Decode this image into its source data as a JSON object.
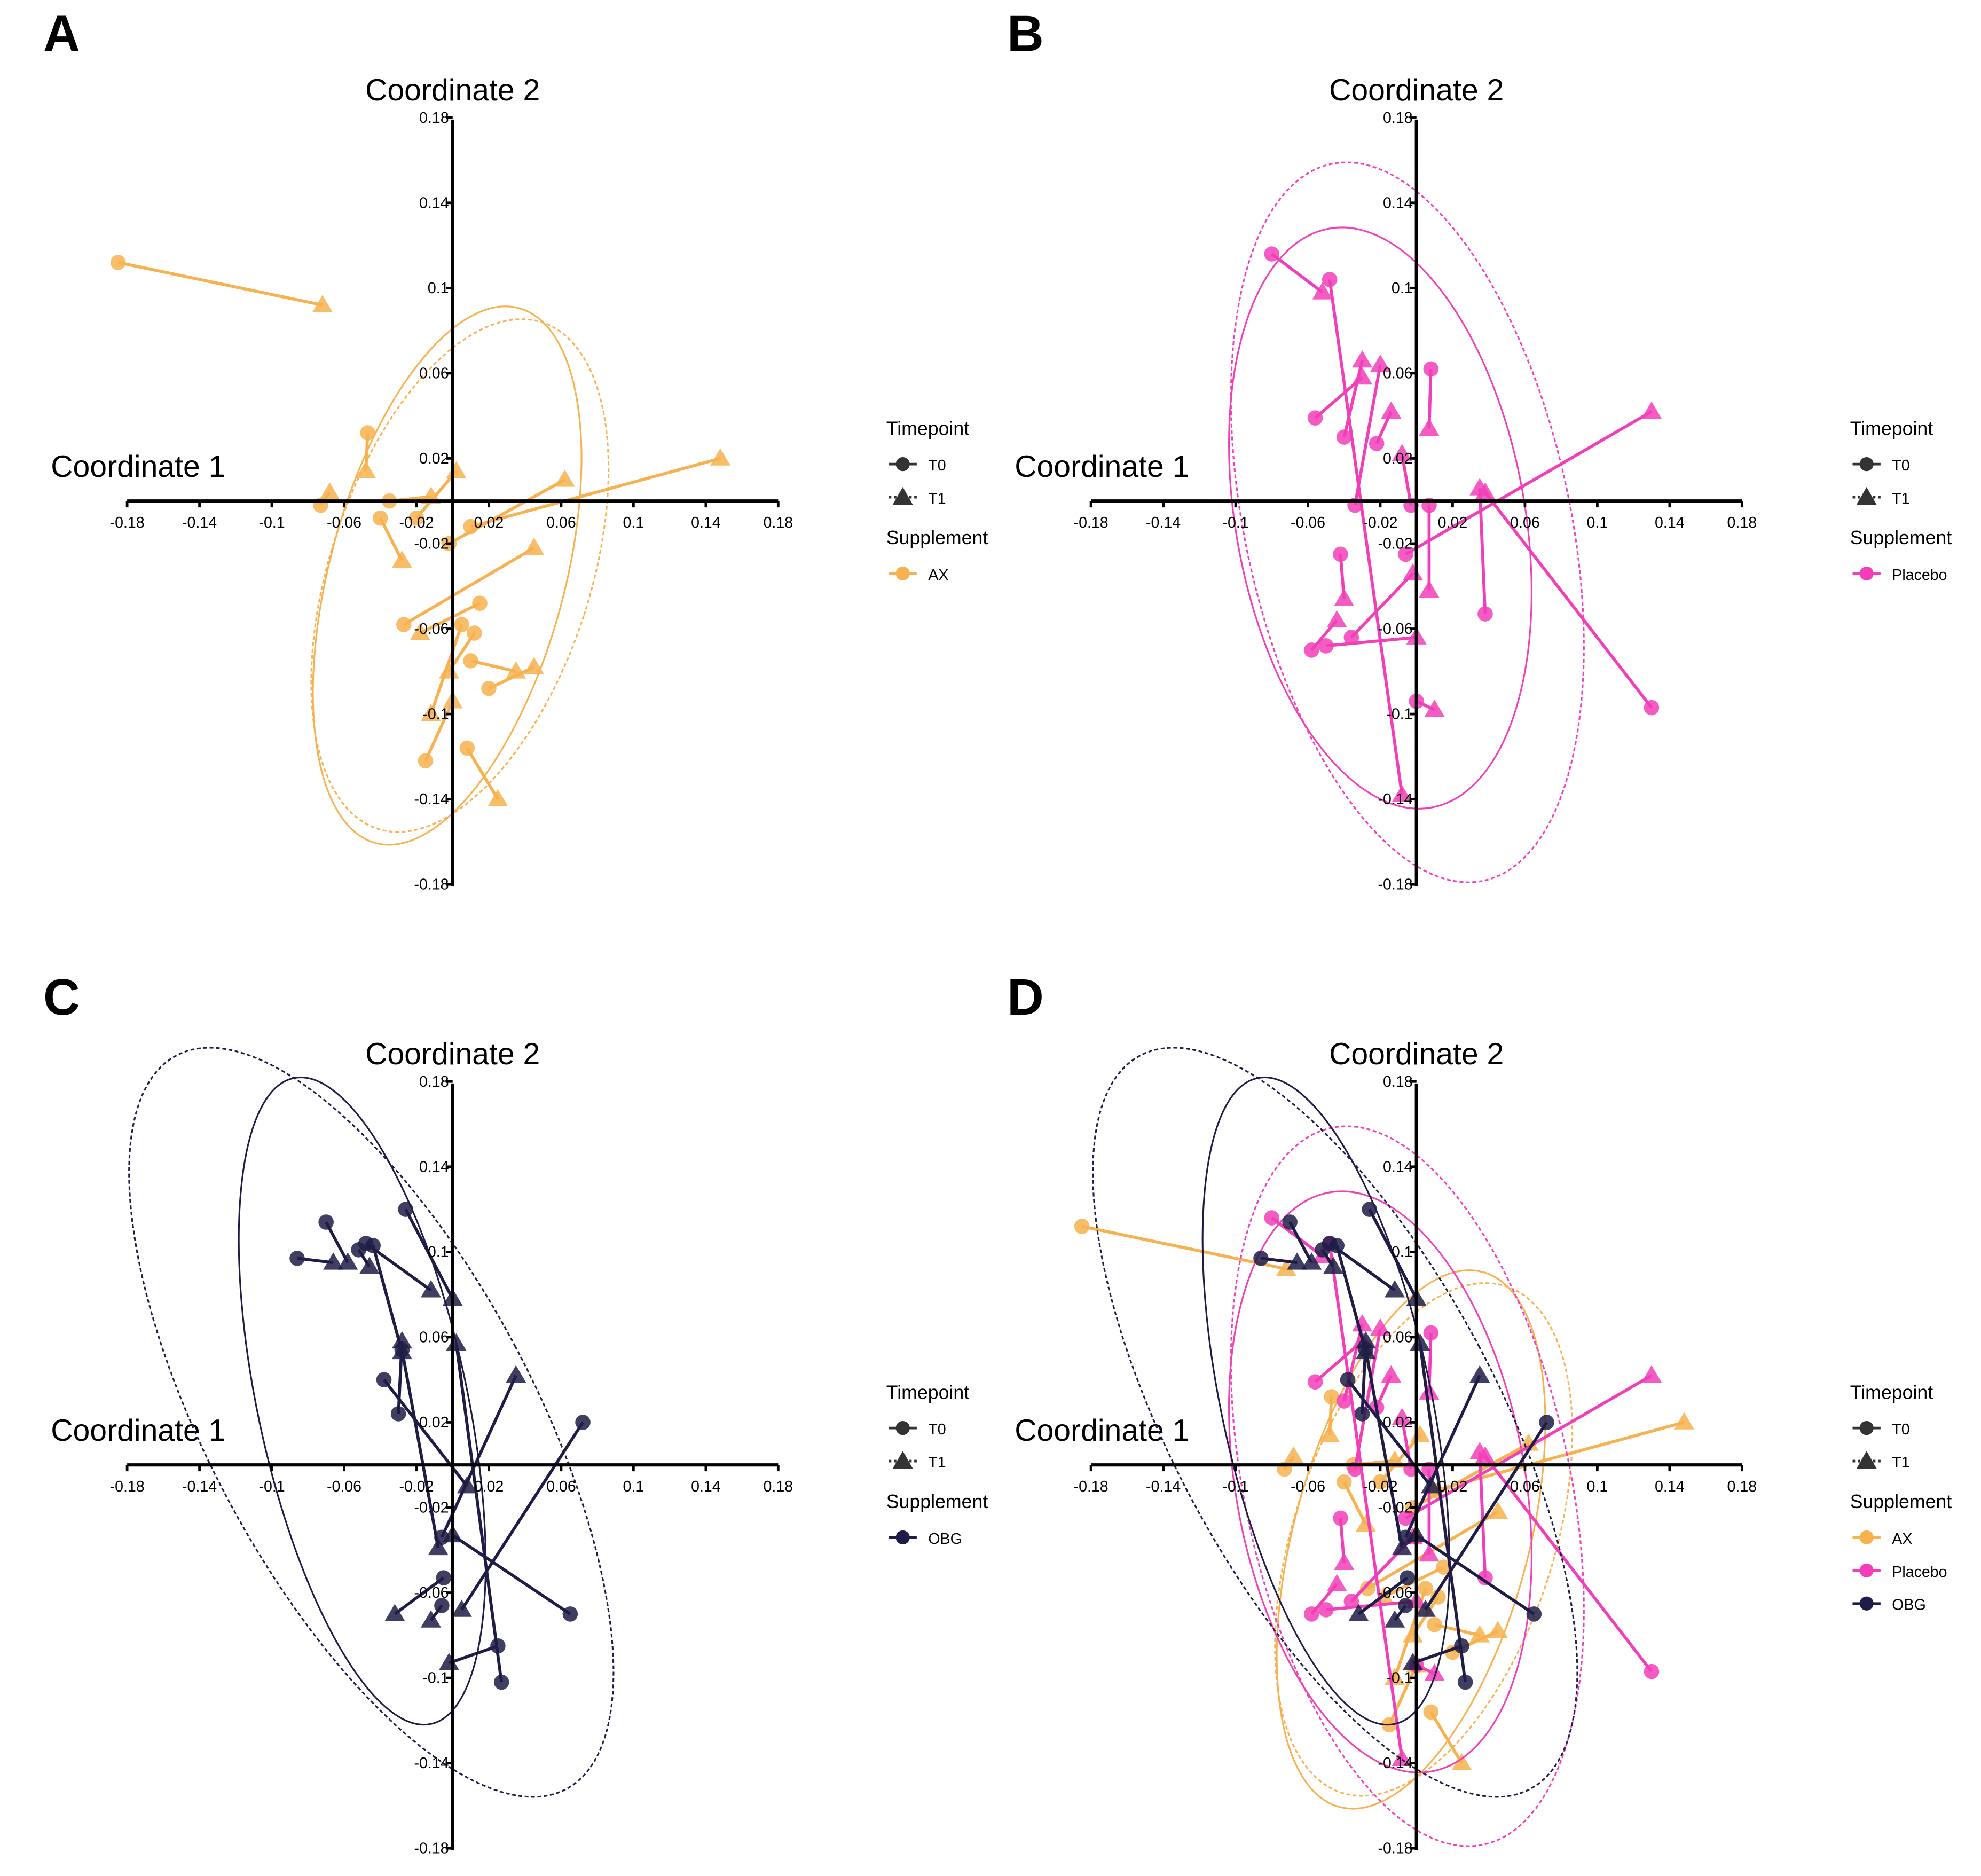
{
  "chart_data": [
    {
      "panel_label": "A",
      "type": "scatter",
      "ordination": "PCoA paired timepoints with 95% ellipses",
      "xlabel": "Coordinate 1",
      "ylabel": "Coordinate 2",
      "xlim": [
        -0.18,
        0.18
      ],
      "ylim": [
        -0.18,
        0.18
      ],
      "x_ticks": [
        "-0.18",
        "-0.14",
        "-0.1",
        "-0.06",
        "-0.02",
        "0.02",
        "0.06",
        "0.1",
        "0.14",
        "0.18"
      ],
      "y_ticks": [
        "0.18",
        "0.14",
        "0.1",
        "0.06",
        "0.02",
        "-0.02",
        "-0.06",
        "-0.1",
        "-0.14",
        "-0.18"
      ],
      "grid": false,
      "legend": {
        "placement": "right",
        "timepoint_title": "Timepoint",
        "timepoint_items": [
          "T0",
          "T1"
        ],
        "supplement_title": "Supplement",
        "supplement_items": [
          {
            "name": "AX",
            "color": "#F7B14F"
          }
        ]
      },
      "groups": [
        {
          "name": "AX",
          "color": "#F7B14F",
          "pairs": [
            {
              "t0": [
                -0.185,
                0.112
              ],
              "t1": [
                -0.072,
                0.092
              ]
            },
            {
              "t0": [
                -0.073,
                -0.002
              ],
              "t1": [
                -0.068,
                0.004
              ]
            },
            {
              "t0": [
                -0.047,
                0.032
              ],
              "t1": [
                -0.048,
                0.014
              ]
            },
            {
              "t0": [
                -0.04,
                -0.008
              ],
              "t1": [
                -0.028,
                -0.028
              ]
            },
            {
              "t0": [
                -0.035,
                0.0
              ],
              "t1": [
                -0.012,
                0.002
              ]
            },
            {
              "t0": [
                -0.02,
                -0.008
              ],
              "t1": [
                0.002,
                0.014
              ]
            },
            {
              "t0": [
                -0.002,
                -0.02
              ],
              "t1": [
                0.062,
                0.01
              ]
            },
            {
              "t0": [
                0.01,
                -0.012
              ],
              "t1": [
                0.148,
                0.02
              ]
            },
            {
              "t0": [
                -0.027,
                -0.058
              ],
              "t1": [
                0.045,
                -0.022
              ]
            },
            {
              "t0": [
                0.015,
                -0.048
              ],
              "t1": [
                -0.018,
                -0.062
              ]
            },
            {
              "t0": [
                0.012,
                -0.062
              ],
              "t1": [
                -0.002,
                -0.08
              ]
            },
            {
              "t0": [
                0.01,
                -0.075
              ],
              "t1": [
                0.035,
                -0.08
              ]
            },
            {
              "t0": [
                0.005,
                -0.058
              ],
              "t1": [
                -0.012,
                -0.1
              ]
            },
            {
              "t0": [
                0.02,
                -0.088
              ],
              "t1": [
                0.045,
                -0.078
              ]
            },
            {
              "t0": [
                -0.015,
                -0.122
              ],
              "t1": [
                0.0,
                -0.094
              ]
            },
            {
              "t0": [
                0.008,
                -0.116
              ],
              "t1": [
                0.025,
                -0.14
              ]
            }
          ],
          "ellipses": {
            "t0": {
              "cx": -0.003,
              "cy": -0.035,
              "rx": 0.065,
              "ry": 0.13,
              "angle_deg": 15
            },
            "t1": {
              "cx": 0.004,
              "cy": -0.035,
              "rx": 0.072,
              "ry": 0.125,
              "angle_deg": 18
            }
          }
        }
      ]
    },
    {
      "panel_label": "B",
      "type": "scatter",
      "xlabel": "Coordinate 1",
      "ylabel": "Coordinate 2",
      "xlim": [
        -0.18,
        0.18
      ],
      "ylim": [
        -0.18,
        0.18
      ],
      "x_ticks": [
        "-0.18",
        "-0.14",
        "-0.1",
        "-0.06",
        "-0.02",
        "0.02",
        "0.06",
        "0.1",
        "0.14",
        "0.18"
      ],
      "y_ticks": [
        "0.18",
        "0.14",
        "0.1",
        "0.06",
        "0.02",
        "-0.02",
        "-0.06",
        "-0.1",
        "-0.14",
        "-0.18"
      ],
      "grid": false,
      "legend": {
        "placement": "right",
        "timepoint_title": "Timepoint",
        "timepoint_items": [
          "T0",
          "T1"
        ],
        "supplement_title": "Supplement",
        "supplement_items": [
          {
            "name": "Placebo",
            "color": "#F23FB9"
          }
        ]
      },
      "groups": [
        {
          "name": "Placebo",
          "color": "#F23FB9",
          "pairs": [
            {
              "t0": [
                -0.08,
                0.116
              ],
              "t1": [
                -0.052,
                0.098
              ]
            },
            {
              "t0": [
                -0.048,
                0.104
              ],
              "t1": [
                -0.008,
                -0.138
              ]
            },
            {
              "t0": [
                -0.056,
                0.039
              ],
              "t1": [
                -0.03,
                0.058
              ]
            },
            {
              "t0": [
                -0.04,
                0.03
              ],
              "t1": [
                -0.03,
                0.066
              ]
            },
            {
              "t0": [
                -0.034,
                -0.002
              ],
              "t1": [
                -0.02,
                0.064
              ]
            },
            {
              "t0": [
                -0.022,
                0.027
              ],
              "t1": [
                -0.014,
                0.042
              ]
            },
            {
              "t0": [
                0.008,
                0.062
              ],
              "t1": [
                0.007,
                0.034
              ]
            },
            {
              "t0": [
                -0.003,
                -0.002
              ],
              "t1": [
                -0.008,
                0.022
              ]
            },
            {
              "t0": [
                -0.006,
                -0.025
              ],
              "t1": [
                0.13,
                0.042
              ]
            },
            {
              "t0": [
                0.13,
                -0.097
              ],
              "t1": [
                0.038,
                0.004
              ]
            },
            {
              "t0": [
                0.038,
                -0.053
              ],
              "t1": [
                0.035,
                0.006
              ]
            },
            {
              "t0": [
                0.007,
                -0.002
              ],
              "t1": [
                0.007,
                -0.042
              ]
            },
            {
              "t0": [
                -0.042,
                -0.025
              ],
              "t1": [
                -0.04,
                -0.046
              ]
            },
            {
              "t0": [
                -0.058,
                -0.07
              ],
              "t1": [
                -0.044,
                -0.056
              ]
            },
            {
              "t0": [
                -0.05,
                -0.068
              ],
              "t1": [
                0.0,
                -0.064
              ]
            },
            {
              "t0": [
                -0.036,
                -0.064
              ],
              "t1": [
                -0.002,
                -0.034
              ]
            },
            {
              "t0": [
                0.0,
                -0.094
              ],
              "t1": [
                0.01,
                -0.098
              ]
            }
          ],
          "ellipses": {
            "t0": {
              "cx": -0.02,
              "cy": -0.008,
              "rx": 0.08,
              "ry": 0.138,
              "angle_deg": -10
            },
            "t1": {
              "cx": -0.005,
              "cy": -0.01,
              "rx": 0.09,
              "ry": 0.172,
              "angle_deg": -12
            }
          }
        }
      ]
    },
    {
      "panel_label": "C",
      "type": "scatter",
      "xlabel": "Coordinate 1",
      "ylabel": "Coordinate 2",
      "xlim": [
        -0.18,
        0.18
      ],
      "ylim": [
        -0.18,
        0.18
      ],
      "x_ticks": [
        "-0.18",
        "-0.14",
        "-0.1",
        "-0.06",
        "-0.02",
        "0.02",
        "0.06",
        "0.1",
        "0.14",
        "0.18"
      ],
      "y_ticks": [
        "0.18",
        "0.14",
        "0.1",
        "0.06",
        "0.02",
        "-0.02",
        "-0.06",
        "-0.1",
        "-0.14",
        "-0.18"
      ],
      "grid": false,
      "legend": {
        "placement": "right",
        "timepoint_title": "Timepoint",
        "timepoint_items": [
          "T0",
          "T1"
        ],
        "supplement_title": "Supplement",
        "supplement_items": [
          {
            "name": "OBG",
            "color": "#1F1D47"
          }
        ]
      },
      "groups": [
        {
          "name": "OBG",
          "color": "#1F1D47",
          "pairs": [
            {
              "t0": [
                -0.086,
                0.097
              ],
              "t1": [
                -0.066,
                0.095
              ]
            },
            {
              "t0": [
                -0.07,
                0.114
              ],
              "t1": [
                -0.058,
                0.095
              ]
            },
            {
              "t0": [
                -0.052,
                0.101
              ],
              "t1": [
                -0.046,
                0.093
              ]
            },
            {
              "t0": [
                -0.044,
                0.103
              ],
              "t1": [
                -0.028,
                0.053
              ]
            },
            {
              "t0": [
                -0.048,
                0.104
              ],
              "t1": [
                -0.012,
                0.082
              ]
            },
            {
              "t0": [
                -0.026,
                0.12
              ],
              "t1": [
                0.0,
                0.078
              ]
            },
            {
              "t0": [
                -0.028,
                0.054
              ],
              "t1": [
                -0.008,
                -0.039
              ]
            },
            {
              "t0": [
                -0.03,
                0.024
              ],
              "t1": [
                -0.028,
                0.058
              ]
            },
            {
              "t0": [
                -0.038,
                0.04
              ],
              "t1": [
                0.008,
                -0.01
              ]
            },
            {
              "t0": [
                0.072,
                0.02
              ],
              "t1": [
                0.005,
                -0.068
              ]
            },
            {
              "t0": [
                0.065,
                -0.07
              ],
              "t1": [
                0.0,
                -0.033
              ]
            },
            {
              "t0": [
                -0.006,
                -0.034
              ],
              "t1": [
                0.035,
                0.042
              ]
            },
            {
              "t0": [
                0.027,
                -0.102
              ],
              "t1": [
                0.002,
                0.057
              ]
            },
            {
              "t0": [
                0.025,
                -0.085
              ],
              "t1": [
                -0.002,
                -0.093
              ]
            },
            {
              "t0": [
                -0.005,
                -0.053
              ],
              "t1": [
                -0.032,
                -0.07
              ]
            },
            {
              "t0": [
                -0.006,
                -0.066
              ],
              "t1": [
                -0.012,
                -0.073
              ]
            }
          ],
          "ellipses": {
            "t0": {
              "cx": -0.05,
              "cy": 0.03,
              "rx": 0.058,
              "ry": 0.155,
              "angle_deg": -12
            },
            "t1": {
              "cx": -0.045,
              "cy": 0.02,
              "rx": 0.09,
              "ry": 0.195,
              "angle_deg": -28
            }
          }
        }
      ]
    },
    {
      "panel_label": "D",
      "type": "scatter",
      "xlabel": "Coordinate 1",
      "ylabel": "Coordinate 2",
      "xlim": [
        -0.18,
        0.18
      ],
      "ylim": [
        -0.18,
        0.18
      ],
      "x_ticks": [
        "-0.18",
        "-0.14",
        "-0.1",
        "-0.06",
        "-0.02",
        "0.02",
        "0.06",
        "0.1",
        "0.14",
        "0.18"
      ],
      "y_ticks": [
        "0.18",
        "0.14",
        "0.1",
        "0.06",
        "0.02",
        "-0.02",
        "-0.06",
        "-0.1",
        "-0.14",
        "-0.18"
      ],
      "grid": false,
      "legend": {
        "placement": "right",
        "timepoint_title": "Timepoint",
        "timepoint_items": [
          "T0",
          "T1"
        ],
        "supplement_title": "Supplement",
        "supplement_items": [
          {
            "name": "AX",
            "color": "#F7B14F"
          },
          {
            "name": "Placebo",
            "color": "#F23FB9"
          },
          {
            "name": "OBG",
            "color": "#1F1D47"
          }
        ]
      },
      "groups_from_panels": [
        "A",
        "B",
        "C"
      ]
    }
  ]
}
